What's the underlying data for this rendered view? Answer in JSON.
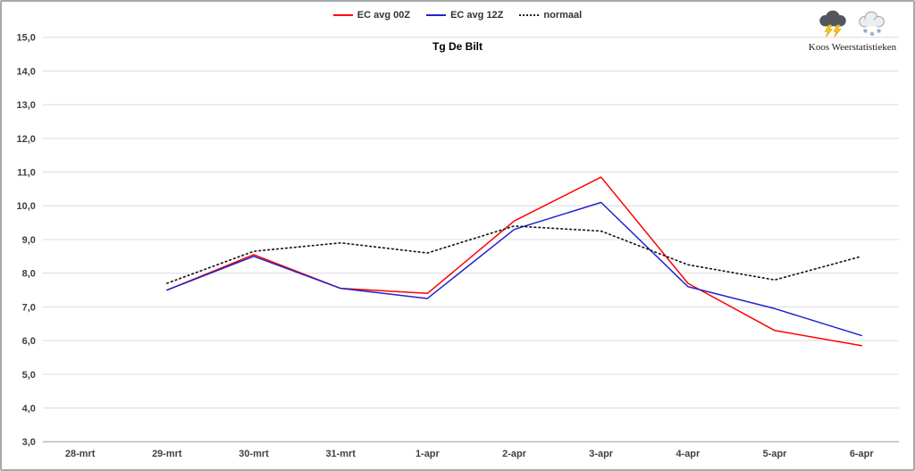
{
  "frame": {
    "background": "#ffffff",
    "border_color": "#a8a8a8"
  },
  "branding": {
    "label": "Koos Weerstatistieken",
    "icons": [
      {
        "name": "storm-cloud-icon"
      },
      {
        "name": "snow-cloud-icon"
      }
    ]
  },
  "chart_data": {
    "type": "line",
    "title": "Tg De Bilt",
    "xlabel": "",
    "ylabel": "",
    "categories": [
      "28-mrt",
      "29-mrt",
      "30-mrt",
      "31-mrt",
      "1-apr",
      "2-apr",
      "3-apr",
      "4-apr",
      "5-apr",
      "6-apr"
    ],
    "ylim": [
      3.0,
      15.0
    ],
    "ytick_step": 1.0,
    "decimal_separator": ",",
    "grid": "horizontal-only",
    "legend_position": "top-center",
    "series": [
      {
        "name": "EC avg 00Z",
        "color": "#ff0000",
        "style": "solid",
        "width": 1.5,
        "values": [
          null,
          7.5,
          8.55,
          7.55,
          7.4,
          9.55,
          10.85,
          7.7,
          6.3,
          5.85
        ]
      },
      {
        "name": "EC avg 12Z",
        "color": "#2323cc",
        "style": "solid",
        "width": 1.5,
        "values": [
          null,
          7.5,
          8.5,
          7.55,
          7.25,
          9.3,
          10.1,
          7.6,
          6.95,
          6.15
        ]
      },
      {
        "name": "normaal",
        "color": "#1a1a1a",
        "style": "dotted",
        "width": 1.6,
        "values": [
          null,
          7.7,
          8.65,
          8.9,
          8.6,
          9.4,
          9.25,
          8.25,
          7.8,
          8.5
        ]
      }
    ],
    "colors": {
      "grid": "#dcdcdc",
      "axis": "#9b9b9b",
      "tick_text": "#404040"
    }
  }
}
